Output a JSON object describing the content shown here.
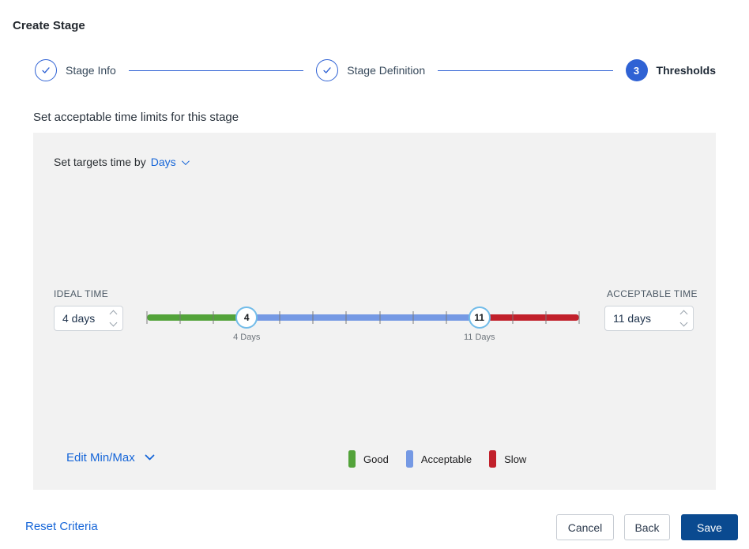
{
  "window": {
    "title": "Create Stage"
  },
  "stepper": {
    "steps": [
      {
        "label": "Stage Info",
        "status": "completed"
      },
      {
        "label": "Stage Definition",
        "status": "completed"
      },
      {
        "label": "Thresholds",
        "status": "active",
        "number": "3"
      }
    ]
  },
  "section": {
    "heading": "Set acceptable time limits for this stage"
  },
  "threshold_panel": {
    "target_time": {
      "prefix": "Set targets time by",
      "selected_unit": "Days"
    },
    "ideal_time": {
      "label": "IDEAL TIME",
      "value": "4 days"
    },
    "acceptable_time": {
      "label": "ACCEPTABLE TIME",
      "value": "11 days"
    },
    "slider": {
      "min_days": 1,
      "max_days": 14,
      "ideal_days": 4,
      "acceptable_days": 11,
      "ideal_handle_value": "4",
      "ideal_handle_label": "4 Days",
      "acceptable_handle_value": "11",
      "acceptable_handle_label": "11 Days"
    },
    "edit_minmax": {
      "label": "Edit Min/Max"
    },
    "legend": [
      {
        "label": "Good",
        "color": "#53a33a"
      },
      {
        "label": "Acceptable",
        "color": "#7599e4"
      },
      {
        "label": "Slow",
        "color": "#c1202b"
      }
    ]
  },
  "footer": {
    "reset_label": "Reset Criteria",
    "cancel_label": "Cancel",
    "back_label": "Back",
    "save_label": "Save"
  },
  "colors": {
    "accent_blue": "#2f62d4",
    "link_blue": "#1565d8",
    "save_navy": "#0a4a90",
    "panel_gray": "#f2f2f2",
    "handle_border": "#72bce9"
  }
}
